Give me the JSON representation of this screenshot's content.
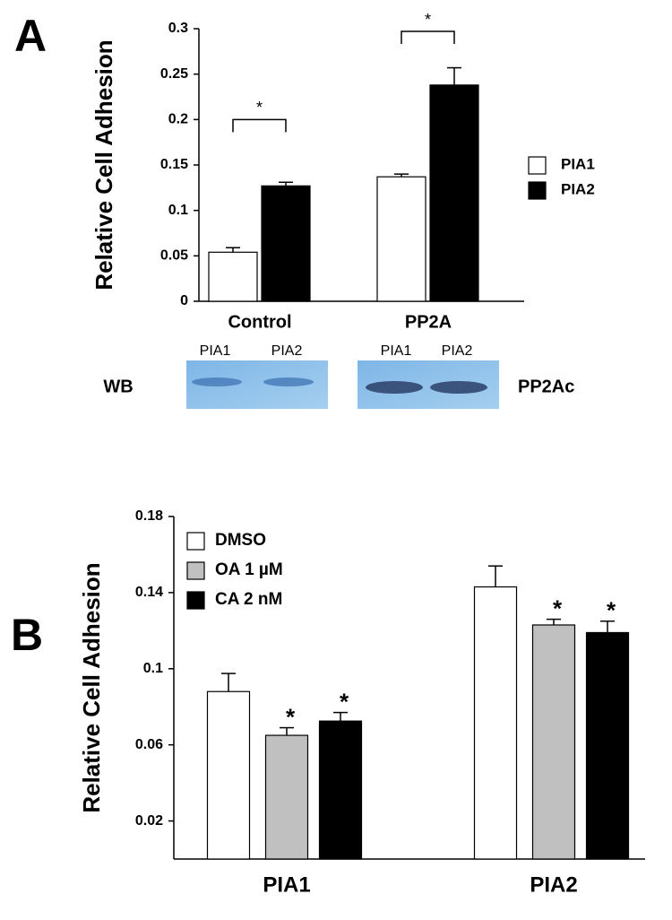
{
  "chart_data": [
    {
      "type": "bar",
      "panel": "A",
      "y_label": "Relative Cell Adhesion",
      "categories": [
        "Control",
        "PP2A"
      ],
      "series": [
        {
          "name": "PIA1",
          "color": "#ffffff",
          "values": [
            0.054,
            0.137
          ],
          "errors": [
            0.005,
            0.003
          ]
        },
        {
          "name": "PIA2",
          "color": "#000000",
          "values": [
            0.127,
            0.238
          ],
          "errors": [
            0.004,
            0.019
          ]
        }
      ],
      "ylim": [
        0,
        0.3
      ],
      "yticks": [
        0,
        0.05,
        0.1,
        0.15,
        0.2,
        0.25,
        0.3
      ],
      "brackets": [
        {
          "label": "*",
          "y": 0.2,
          "from": [
            0,
            0
          ],
          "to": [
            0,
            1
          ]
        },
        {
          "label": "*",
          "y": 0.297,
          "from": [
            1,
            0
          ],
          "to": [
            1,
            1
          ]
        }
      ],
      "western_blot": {
        "label": "WB",
        "protein": "PP2Ac",
        "lanes": [
          "PIA1",
          "PIA2",
          "PIA1",
          "PIA2"
        ]
      }
    },
    {
      "type": "bar",
      "panel": "B",
      "y_label": "Relative Cell Adhesion",
      "categories": [
        "PIA1",
        "PIA2"
      ],
      "sig_label": "*",
      "series": [
        {
          "name": "DMSO",
          "color": "#ffffff",
          "values": [
            0.088,
            0.143
          ],
          "errors": [
            0.0095,
            0.011
          ],
          "significant": [
            false,
            false
          ]
        },
        {
          "name": "OA 1 µM",
          "color": "#c0c0c0",
          "values": [
            0.065,
            0.123
          ],
          "errors": [
            0.004,
            0.003
          ],
          "significant": [
            true,
            true
          ]
        },
        {
          "name": "CA 2 nM",
          "color": "#000000",
          "values": [
            0.0725,
            0.119
          ],
          "errors": [
            0.0045,
            0.006
          ],
          "significant": [
            true,
            true
          ]
        }
      ],
      "ylim": [
        0,
        0.18
      ],
      "yticks": [
        0.02,
        0.06,
        0.1,
        0.14,
        0.18
      ]
    }
  ]
}
